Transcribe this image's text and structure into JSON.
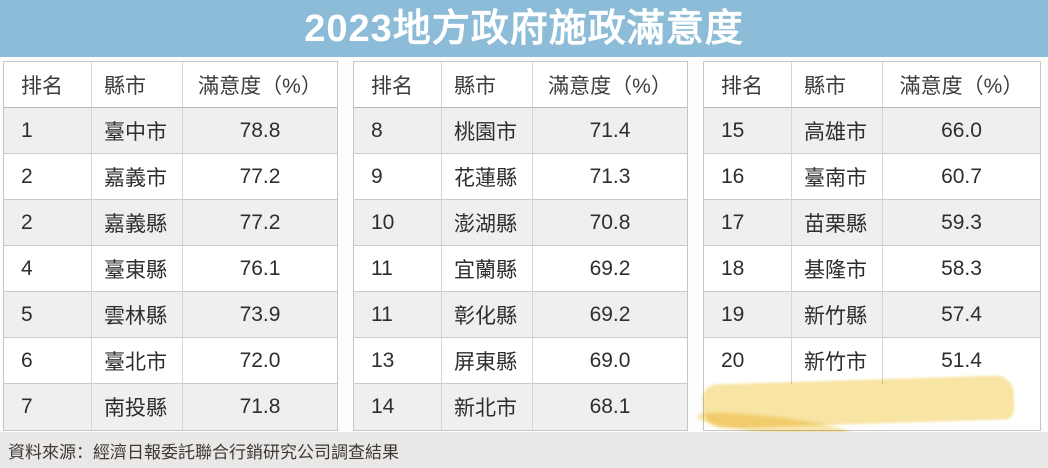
{
  "title": "2023地方政府施政滿意度",
  "column_headers": [
    "排名",
    "縣市",
    "滿意度（%）"
  ],
  "tables": [
    {
      "rows": [
        {
          "rank": "1",
          "city": "臺中市",
          "score": "78.8"
        },
        {
          "rank": "2",
          "city": "嘉義市",
          "score": "77.2"
        },
        {
          "rank": "2",
          "city": "嘉義縣",
          "score": "77.2"
        },
        {
          "rank": "4",
          "city": "臺東縣",
          "score": "76.1"
        },
        {
          "rank": "5",
          "city": "雲林縣",
          "score": "73.9"
        },
        {
          "rank": "6",
          "city": "臺北市",
          "score": "72.0"
        },
        {
          "rank": "7",
          "city": "南投縣",
          "score": "71.8"
        }
      ]
    },
    {
      "rows": [
        {
          "rank": "8",
          "city": "桃園市",
          "score": "71.4"
        },
        {
          "rank": "9",
          "city": "花蓮縣",
          "score": "71.3"
        },
        {
          "rank": "10",
          "city": "澎湖縣",
          "score": "70.8"
        },
        {
          "rank": "11",
          "city": "宜蘭縣",
          "score": "69.2"
        },
        {
          "rank": "11",
          "city": "彰化縣",
          "score": "69.2"
        },
        {
          "rank": "13",
          "city": "屏東縣",
          "score": "69.0"
        },
        {
          "rank": "14",
          "city": "新北市",
          "score": "68.1"
        }
      ]
    },
    {
      "rows": [
        {
          "rank": "15",
          "city": "高雄市",
          "score": "66.0"
        },
        {
          "rank": "16",
          "city": "臺南市",
          "score": "60.7"
        },
        {
          "rank": "17",
          "city": "苗栗縣",
          "score": "59.3"
        },
        {
          "rank": "18",
          "city": "基隆市",
          "score": "58.3"
        },
        {
          "rank": "19",
          "city": "新竹縣",
          "score": "57.4"
        },
        {
          "rank": "20",
          "city": "新竹市",
          "score": "51.4",
          "highlighted": true
        }
      ]
    }
  ],
  "source": "資料來源：經濟日報委託聯合行銷研究公司調查結果",
  "colors": {
    "banner_blue": "#8cbcd8",
    "row_alt_gray": "#f1efed",
    "highlight_yellow": "#f3cd58",
    "footer_gray": "#eae8e6"
  },
  "chart_data": {
    "type": "table",
    "title": "2023地方政府施政滿意度",
    "columns": [
      "排名",
      "縣市",
      "滿意度（%）"
    ],
    "rows": [
      [
        1,
        "臺中市",
        78.8
      ],
      [
        2,
        "嘉義市",
        77.2
      ],
      [
        2,
        "嘉義縣",
        77.2
      ],
      [
        4,
        "臺東縣",
        76.1
      ],
      [
        5,
        "雲林縣",
        73.9
      ],
      [
        6,
        "臺北市",
        72.0
      ],
      [
        7,
        "南投縣",
        71.8
      ],
      [
        8,
        "桃園市",
        71.4
      ],
      [
        9,
        "花蓮縣",
        71.3
      ],
      [
        10,
        "澎湖縣",
        70.8
      ],
      [
        11,
        "宜蘭縣",
        69.2
      ],
      [
        11,
        "彰化縣",
        69.2
      ],
      [
        13,
        "屏東縣",
        69.0
      ],
      [
        14,
        "新北市",
        68.1
      ],
      [
        15,
        "高雄市",
        66.0
      ],
      [
        16,
        "臺南市",
        60.7
      ],
      [
        17,
        "苗栗縣",
        59.3
      ],
      [
        18,
        "基隆市",
        58.3
      ],
      [
        19,
        "新竹縣",
        57.4
      ],
      [
        20,
        "新竹市",
        51.4
      ]
    ],
    "highlighted_row": [
      20,
      "新竹市",
      51.4
    ],
    "layout": "three side-by-side tables of 7, 7 and 6 rows",
    "source": "資料來源：經濟日報委託聯合行銷研究公司調查結果"
  }
}
